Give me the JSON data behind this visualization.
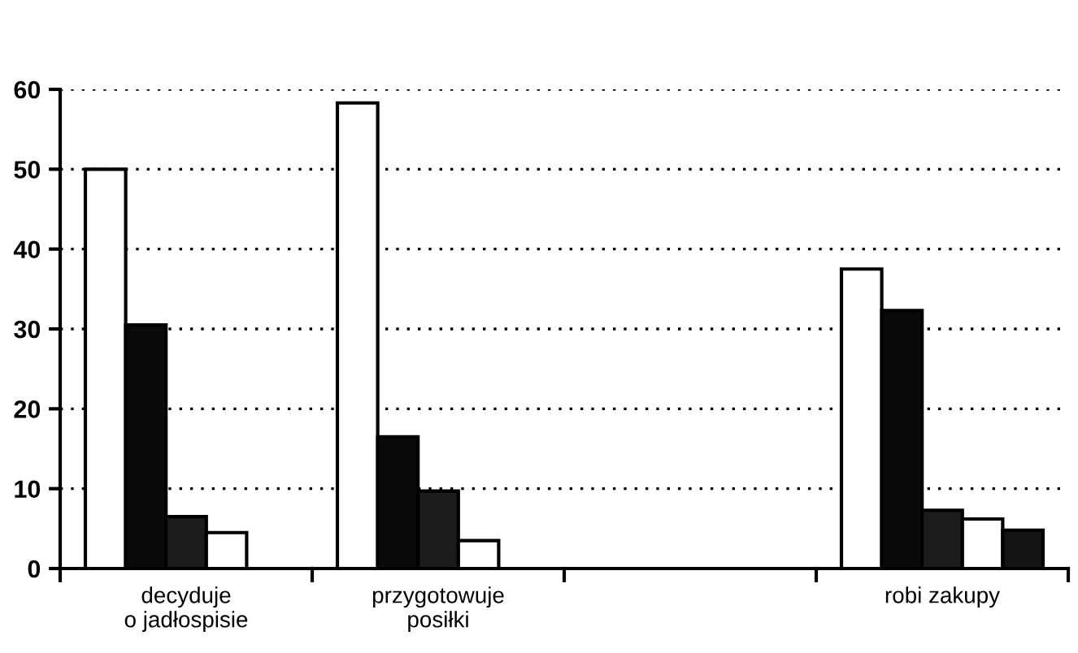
{
  "chart_data": {
    "type": "bar",
    "categories": [
      "decyduje\no jadłospisie",
      "przygotowuje\nposiłki",
      null,
      "robi zakupy"
    ],
    "series": [
      {
        "color": "#ffffff",
        "values": [
          50,
          58.3,
          null,
          37.5
        ]
      },
      {
        "color": "#0a0a0a",
        "values": [
          30.5,
          16.5,
          null,
          32.3
        ]
      },
      {
        "color": "#1c1c1c",
        "values": [
          6.5,
          9.7,
          null,
          7.3
        ]
      },
      {
        "color": "#ffffff",
        "values": [
          4.5,
          3.5,
          null,
          6.2
        ]
      },
      {
        "color": "#141414",
        "values": [
          null,
          null,
          null,
          4.8
        ]
      }
    ],
    "ylim": [
      0,
      60
    ],
    "yticks": [
      0,
      10,
      20,
      30,
      40,
      50,
      60
    ],
    "grid": "y",
    "legend": false
  }
}
